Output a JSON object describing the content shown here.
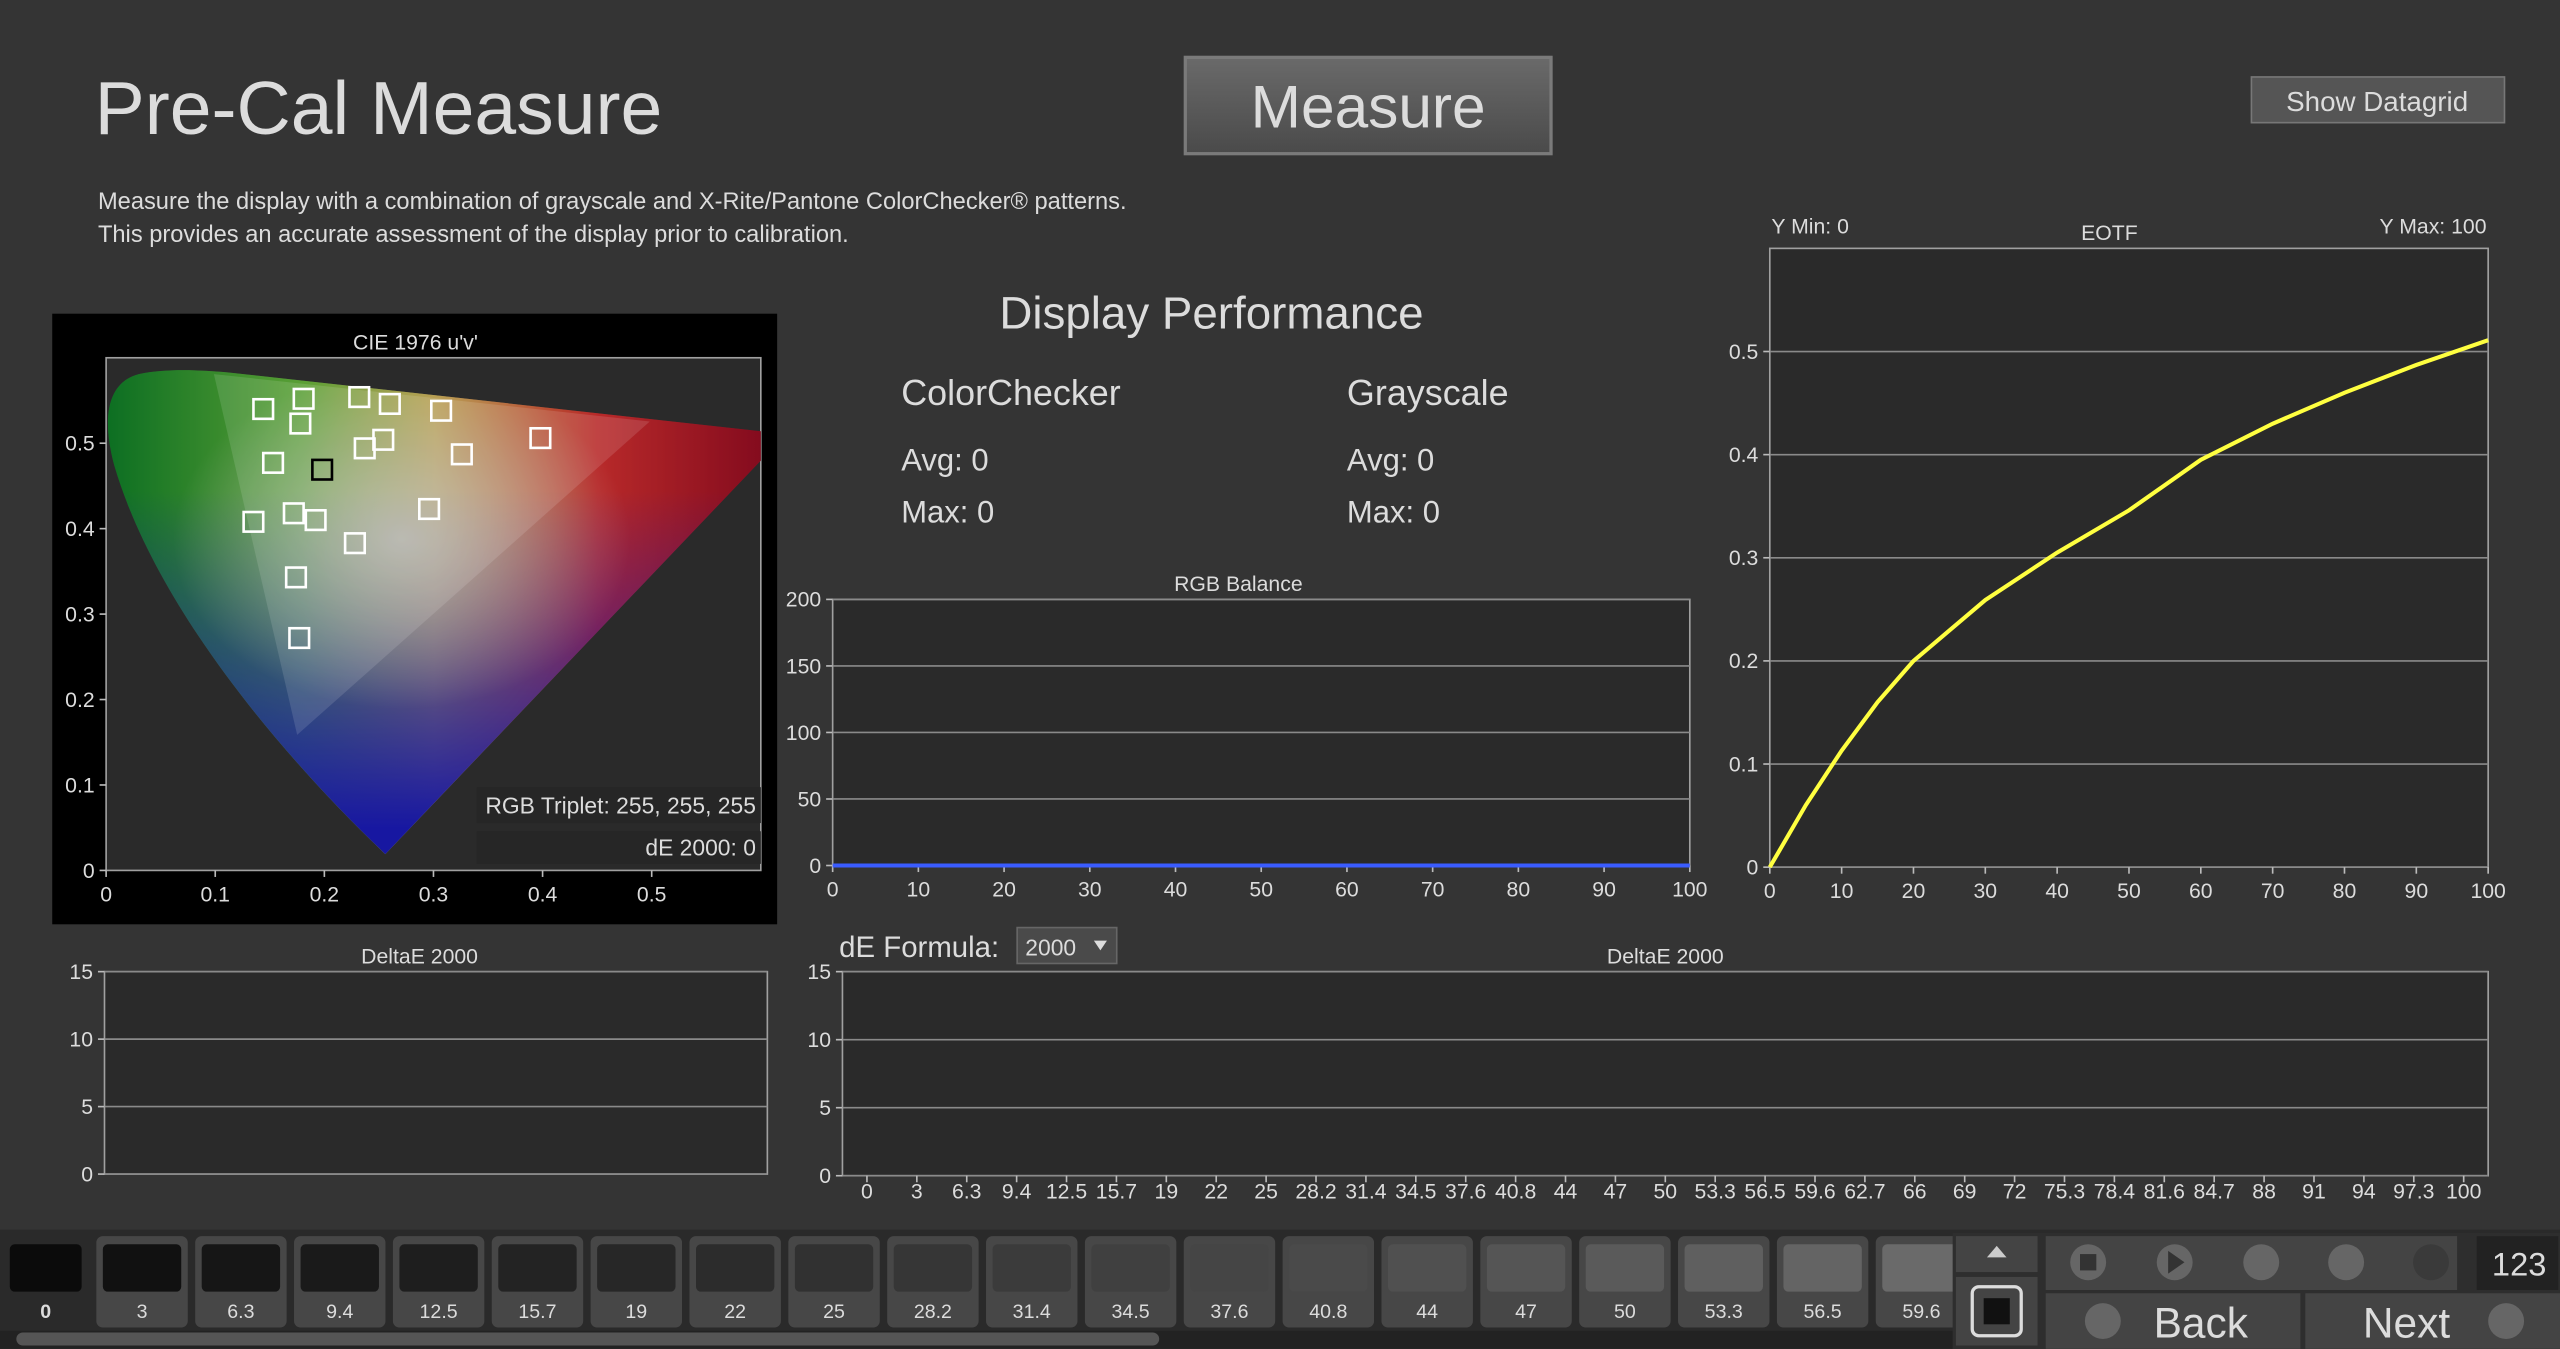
{
  "header": {
    "title": "Pre-Cal Measure",
    "measure_button": "Measure",
    "datagrid_button": "Show Datagrid",
    "description": [
      "Measure the display with a combination of grayscale and X-Rite/Pantone ColorChecker® patterns.",
      "This provides an accurate assessment of the display prior to calibration."
    ]
  },
  "performance": {
    "title": "Display Performance",
    "colorchecker": {
      "label": "ColorChecker",
      "avg": "Avg: 0",
      "max": "Max: 0"
    },
    "grayscale": {
      "label": "Grayscale",
      "avg": "Avg: 0",
      "max": "Max: 0"
    }
  },
  "de_formula": {
    "label": "dE Formula:",
    "value": "2000"
  },
  "chart_data": [
    {
      "type": "scatter",
      "title": "CIE 1976 u'v'",
      "xlim": [
        0,
        0.6
      ],
      "ylim": [
        0,
        0.6
      ],
      "xticks": [
        0,
        0.1,
        0.2,
        0.3,
        0.4,
        0.5
      ],
      "yticks": [
        0,
        0.1,
        0.2,
        0.3,
        0.4,
        0.5
      ],
      "grid": false,
      "series": [
        {
          "color": "#ffffff",
          "x": [
            0.144,
            0.181,
            0.178,
            0.232,
            0.26,
            0.307,
            0.398,
            0.254,
            0.237,
            0.326,
            0.153,
            0.135,
            0.172,
            0.192,
            0.296,
            0.228,
            0.174,
            0.177
          ],
          "values": [
            0.54,
            0.552,
            0.523,
            0.554,
            0.546,
            0.538,
            0.506,
            0.504,
            0.494,
            0.487,
            0.477,
            0.408,
            0.418,
            0.41,
            0.423,
            0.383,
            0.343,
            0.272
          ]
        },
        {
          "color": "#000000",
          "x": [
            0.198
          ],
          "values": [
            0.469
          ]
        }
      ],
      "annotations": [
        "RGB Triplet: 255, 255, 255",
        "dE 2000: 0"
      ]
    },
    {
      "type": "line",
      "title": "RGB Balance",
      "xlim": [
        0,
        100
      ],
      "ylim": [
        0,
        200
      ],
      "xticks": [
        0,
        10,
        20,
        30,
        40,
        50,
        60,
        70,
        80,
        90,
        100
      ],
      "yticks": [
        0,
        50,
        100,
        150,
        200
      ],
      "grid": true,
      "series": [
        {
          "color": "#3a5cff",
          "x": [
            0,
            10,
            20,
            30,
            40,
            50,
            60,
            70,
            80,
            90,
            100
          ],
          "values": [
            0,
            0,
            0,
            0,
            0,
            0,
            0,
            0,
            0,
            0,
            0
          ]
        }
      ]
    },
    {
      "type": "line",
      "title": "EOTF",
      "xlim": [
        0,
        100
      ],
      "ylim": [
        0,
        0.6
      ],
      "xticks": [
        0,
        10,
        20,
        30,
        40,
        50,
        60,
        70,
        80,
        90,
        100
      ],
      "yticks": [
        0,
        0.1,
        0.2,
        0.3,
        0.4,
        0.5
      ],
      "grid": true,
      "series": [
        {
          "color": "#ffff40",
          "x": [
            0,
            5,
            10,
            15,
            20,
            30,
            40,
            50,
            60,
            70,
            80,
            90,
            100
          ],
          "values": [
            0,
            0.06,
            0.113,
            0.16,
            0.2,
            0.259,
            0.305,
            0.346,
            0.395,
            0.43,
            0.46,
            0.487,
            0.511
          ]
        }
      ],
      "annotations": [
        "Y Min: 0",
        "Y Max: 100"
      ]
    },
    {
      "type": "bar",
      "title": "DeltaE 2000",
      "ylim": [
        0,
        15
      ],
      "yticks": [
        0,
        5,
        10,
        15
      ],
      "grid": true
    },
    {
      "type": "bar",
      "title": "DeltaE 2000",
      "ylim": [
        0,
        15
      ],
      "yticks": [
        0,
        5,
        10,
        15
      ],
      "grid": true,
      "categories": [
        "0",
        "3",
        "6.3",
        "9.4",
        "12.5",
        "15.7",
        "19",
        "22",
        "25",
        "28.2",
        "31.4",
        "34.5",
        "37.6",
        "40.8",
        "44",
        "47",
        "50",
        "53.3",
        "56.5",
        "59.6",
        "62.7",
        "66",
        "69",
        "72",
        "75.3",
        "78.4",
        "81.6",
        "84.7",
        "88",
        "91",
        "94",
        "97.3",
        "100"
      ]
    }
  ],
  "swatches": [
    {
      "label": "0",
      "color": "#0b0b0b"
    },
    {
      "label": "3",
      "color": "#111111"
    },
    {
      "label": "6.3",
      "color": "#161616"
    },
    {
      "label": "9.4",
      "color": "#1a1a1a"
    },
    {
      "label": "12.5",
      "color": "#1e1e1e"
    },
    {
      "label": "15.7",
      "color": "#232323"
    },
    {
      "label": "19",
      "color": "#272727"
    },
    {
      "label": "22",
      "color": "#2c2c2c"
    },
    {
      "label": "25",
      "color": "#313131"
    },
    {
      "label": "28.2",
      "color": "#363636"
    },
    {
      "label": "31.4",
      "color": "#3b3b3b"
    },
    {
      "label": "34.5",
      "color": "#404040"
    },
    {
      "label": "37.6",
      "color": "#454545"
    },
    {
      "label": "40.8",
      "color": "#4a4a4a"
    },
    {
      "label": "44",
      "color": "#505050"
    },
    {
      "label": "47",
      "color": "#555555"
    },
    {
      "label": "50",
      "color": "#5a5a5a"
    },
    {
      "label": "53.3",
      "color": "#5f5f5f"
    },
    {
      "label": "56.5",
      "color": "#646464"
    },
    {
      "label": "59.6",
      "color": "#6a6a6a"
    }
  ],
  "controls": {
    "counter": "123",
    "back": "Back",
    "next": "Next"
  }
}
